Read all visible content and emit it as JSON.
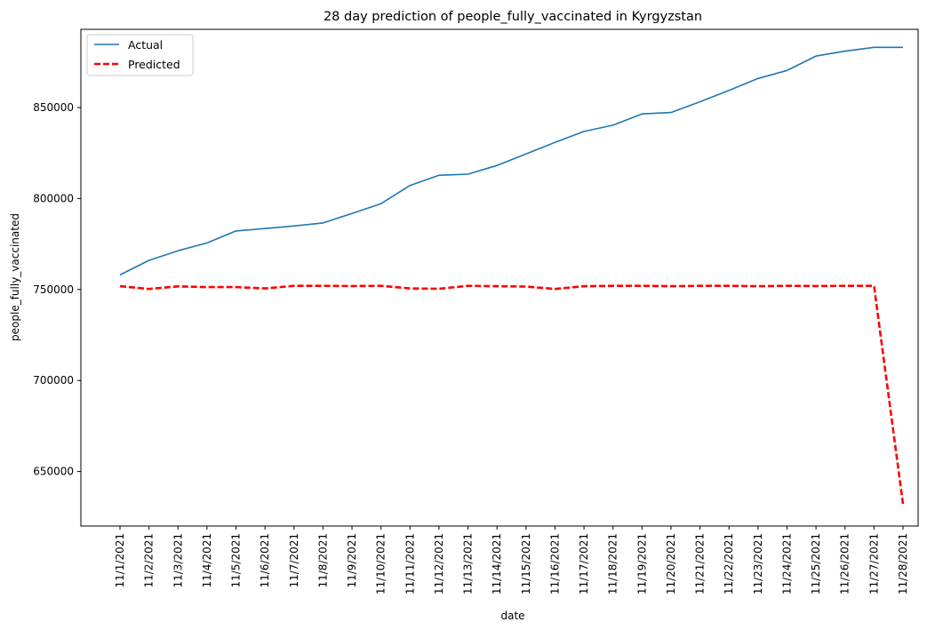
{
  "chart_data": {
    "type": "line",
    "title": "28 day prediction of people_fully_vaccinated in Kyrgyzstan",
    "xlabel": "date",
    "ylabel": "people_fully_vaccinated",
    "categories": [
      "11/1/2021",
      "11/2/2021",
      "11/3/2021",
      "11/4/2021",
      "11/5/2021",
      "11/6/2021",
      "11/7/2021",
      "11/8/2021",
      "11/9/2021",
      "11/10/2021",
      "11/11/2021",
      "11/12/2021",
      "11/13/2021",
      "11/14/2021",
      "11/15/2021",
      "11/16/2021",
      "11/17/2021",
      "11/18/2021",
      "11/19/2021",
      "11/20/2021",
      "11/21/2021",
      "11/22/2021",
      "11/23/2021",
      "11/24/2021",
      "11/25/2021",
      "11/26/2021",
      "11/27/2021",
      "11/28/2021"
    ],
    "yticks": [
      650000,
      700000,
      750000,
      800000,
      850000
    ],
    "ylim": [
      620000,
      893000
    ],
    "grid": false,
    "legend_position": "top-left",
    "series": [
      {
        "name": "Actual",
        "color": "#1f77b4",
        "style": "solid",
        "values": [
          758000,
          766000,
          771300,
          775600,
          782200,
          783500,
          784900,
          786600,
          791800,
          797200,
          807200,
          812800,
          813400,
          818200,
          824500,
          830900,
          836900,
          840300,
          846500,
          847300,
          853200,
          859400,
          866000,
          870400,
          878300,
          881000,
          883100,
          883100
        ]
      },
      {
        "name": "Predicted",
        "color": "#ff0000",
        "style": "dashed",
        "values": [
          751800,
          750300,
          751700,
          751300,
          751300,
          750600,
          752000,
          752000,
          751900,
          752000,
          750600,
          750400,
          752000,
          751800,
          751600,
          750300,
          751800,
          752000,
          752000,
          751800,
          752000,
          752000,
          751800,
          752000,
          751900,
          752000,
          752000,
          632000
        ]
      }
    ]
  }
}
